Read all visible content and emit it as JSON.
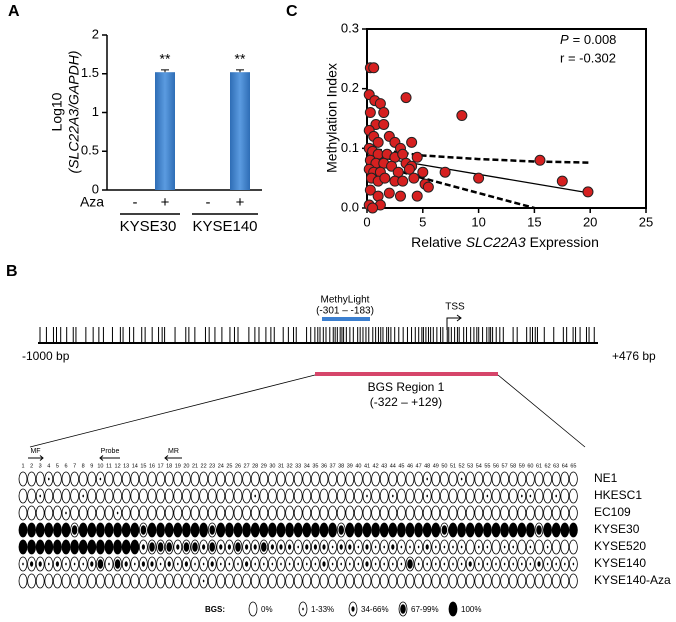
{
  "chart_data": [
    {
      "panel": "A",
      "type": "bar",
      "categories": [
        "-",
        "+",
        "-",
        "+"
      ],
      "row_label": "Aza",
      "groups": [
        "KYSE30",
        "KYSE140"
      ],
      "values": [
        0,
        1.52,
        0,
        1.52
      ],
      "errors": [
        0,
        0.03,
        0,
        0.03
      ],
      "annotations": [
        null,
        "**",
        null,
        "**"
      ],
      "ylabel": "Log10",
      "ylabel_2": "(SLC22A3/GAPDH)",
      "ylim": [
        0,
        2
      ],
      "yticks": [
        0,
        0.5,
        1,
        1.5,
        2
      ],
      "color": "#2e6db5"
    },
    {
      "panel": "C",
      "type": "scatter",
      "xlabel": [
        "Relative",
        "SLC22A3",
        "Expression"
      ],
      "ylabel": "Methylation Index",
      "stat_symbol": "P",
      "stat_text": "= 0.008",
      "stat_r": "r = -0.302",
      "color": "#d62020",
      "x": [
        0.3,
        0.6,
        0.2,
        0.7,
        1.2,
        1.5,
        3.5,
        0.3,
        0.8,
        1.5,
        2.0,
        0.2,
        0.6,
        1.0,
        2.5,
        3.0,
        4.0,
        8.5,
        0.2,
        0.5,
        1.0,
        1.8,
        2.5,
        3.2,
        4.5,
        0.3,
        0.8,
        1.5,
        2.2,
        3.5,
        4.0,
        0.2,
        0.6,
        1.2,
        2.8,
        3.8,
        5.0,
        0.4,
        1.0,
        1.6,
        2.5,
        3.2,
        4.2,
        5.2,
        7.0,
        10,
        15.5,
        17.5,
        19.8,
        0.3,
        1.0,
        2.0,
        3.0,
        4.5,
        0.2,
        1.2,
        0.5,
        5.5
      ],
      "values": [
        0.235,
        0.235,
        0.19,
        0.18,
        0.175,
        0.16,
        0.185,
        0.16,
        0.14,
        0.14,
        0.12,
        0.13,
        0.12,
        0.11,
        0.11,
        0.1,
        0.11,
        0.155,
        0.1,
        0.095,
        0.09,
        0.09,
        0.085,
        0.09,
        0.085,
        0.08,
        0.075,
        0.075,
        0.07,
        0.075,
        0.07,
        0.065,
        0.06,
        0.06,
        0.06,
        0.065,
        0.06,
        0.05,
        0.045,
        0.05,
        0.045,
        0.045,
        0.05,
        0.04,
        0.06,
        0.05,
        0.08,
        0.045,
        0.027,
        0.03,
        0.02,
        0.025,
        0.02,
        0.02,
        0.005,
        0.005,
        0.0,
        0.035
      ],
      "lines": [
        {
          "style": "solid",
          "x": [
            0,
            20
          ],
          "y": [
            0.088,
            0.025
          ]
        },
        {
          "style": "dashed",
          "x": [
            0,
            5,
            10,
            15,
            20
          ],
          "y": [
            0.1,
            0.088,
            0.082,
            0.078,
            0.076
          ]
        },
        {
          "style": "dashed",
          "x": [
            0,
            5,
            10,
            15
          ],
          "y": [
            0.078,
            0.05,
            0.025,
            0.0
          ]
        }
      ],
      "xlim": [
        0,
        25
      ],
      "xticks": [
        0,
        5,
        10,
        15,
        20,
        25
      ],
      "ylim": [
        0,
        0.3
      ],
      "yticks": [
        {
          "value": 0,
          "label": "0.0"
        },
        0.1,
        0.2,
        0.3
      ]
    }
  ],
  "figure_b": {
    "panel": "B",
    "start": "-1000 bp",
    "end": "+476 bp",
    "assay": "MethyLight",
    "assay_range": "(-301 – -183)",
    "tss": "TSS",
    "region": "BGS Region 1",
    "region_range": "(-322 – +129)",
    "primers": [
      "MF",
      "Probe",
      "MR"
    ],
    "positions": [
      1,
      2,
      3,
      4,
      5,
      6,
      7,
      8,
      9,
      10,
      11,
      12,
      13,
      14,
      15,
      16,
      17,
      18,
      19,
      20,
      21,
      22,
      23,
      24,
      25,
      26,
      27,
      28,
      29,
      30,
      31,
      32,
      33,
      34,
      35,
      36,
      37,
      38,
      39,
      40,
      41,
      42,
      43,
      44,
      45,
      46,
      47,
      48,
      49,
      50,
      51,
      52,
      53,
      54,
      55,
      56,
      57,
      58,
      59,
      60,
      61,
      62,
      63,
      64,
      65
    ],
    "rows": [
      {
        "name": "NE1",
        "states": [
          0,
          0,
          0,
          1,
          0,
          0,
          0,
          0,
          0,
          1,
          0,
          0,
          0,
          0,
          0,
          0,
          0,
          0,
          0,
          0,
          0,
          0,
          0,
          0,
          0,
          0,
          0,
          0,
          0,
          0,
          0,
          0,
          0,
          0,
          0,
          0,
          0,
          0,
          0,
          0,
          0,
          0,
          0,
          0,
          0,
          0,
          0,
          1,
          0,
          0,
          0,
          1,
          0,
          0,
          0,
          0,
          0,
          0,
          0,
          0,
          0,
          0,
          0,
          0,
          0
        ]
      },
      {
        "name": "HKESC1",
        "states": [
          0,
          0,
          1,
          0,
          0,
          0,
          0,
          1,
          0,
          0,
          0,
          0,
          0,
          0,
          0,
          0,
          0,
          0,
          0,
          0,
          0,
          0,
          0,
          0,
          0,
          0,
          0,
          1,
          0,
          0,
          0,
          0,
          0,
          0,
          0,
          0,
          0,
          0,
          0,
          0,
          1,
          0,
          0,
          1,
          0,
          0,
          0,
          1,
          0,
          0,
          0,
          0,
          0,
          0,
          1,
          0,
          0,
          0,
          1,
          1,
          0,
          0,
          1,
          0,
          0
        ]
      },
      {
        "name": "EC109",
        "states": [
          0,
          0,
          0,
          0,
          0,
          1,
          0,
          0,
          0,
          0,
          0,
          1,
          0,
          0,
          0,
          0,
          0,
          0,
          0,
          0,
          0,
          0,
          0,
          0,
          0,
          0,
          0,
          0,
          0,
          0,
          0,
          0,
          0,
          0,
          0,
          0,
          0,
          0,
          0,
          0,
          0,
          0,
          0,
          0,
          0,
          0,
          0,
          0,
          0,
          0,
          0,
          0,
          0,
          0,
          0,
          0,
          0,
          0,
          0,
          0,
          0,
          0,
          0,
          0,
          0
        ]
      },
      {
        "name": "KYSE30",
        "states": [
          4,
          4,
          4,
          4,
          4,
          4,
          3,
          4,
          4,
          4,
          4,
          4,
          4,
          4,
          3,
          4,
          4,
          4,
          4,
          4,
          4,
          4,
          3,
          4,
          4,
          4,
          4,
          4,
          4,
          4,
          4,
          4,
          4,
          4,
          4,
          4,
          4,
          3,
          4,
          4,
          4,
          4,
          4,
          4,
          4,
          4,
          4,
          4,
          4,
          3,
          4,
          4,
          4,
          4,
          4,
          4,
          4,
          4,
          4,
          4,
          3,
          4,
          4,
          4,
          4
        ]
      },
      {
        "name": "KYSE520",
        "states": [
          4,
          4,
          4,
          4,
          4,
          4,
          4,
          4,
          4,
          4,
          4,
          4,
          4,
          4,
          2,
          3,
          3,
          3,
          2,
          3,
          3,
          2,
          3,
          2,
          2,
          3,
          2,
          2,
          3,
          2,
          2,
          2,
          1,
          2,
          2,
          2,
          1,
          2,
          2,
          1,
          2,
          1,
          1,
          2,
          1,
          1,
          1,
          2,
          1,
          1,
          1,
          1,
          0,
          1,
          1,
          0,
          1,
          1,
          0,
          1,
          0,
          1,
          0,
          0,
          0
        ]
      },
      {
        "name": "KYSE140",
        "states": [
          1,
          2,
          2,
          1,
          2,
          1,
          1,
          1,
          2,
          3,
          1,
          3,
          2,
          1,
          2,
          2,
          1,
          2,
          1,
          2,
          1,
          1,
          2,
          1,
          1,
          1,
          2,
          1,
          1,
          1,
          1,
          1,
          1,
          1,
          1,
          2,
          1,
          1,
          1,
          1,
          2,
          1,
          1,
          1,
          1,
          3,
          1,
          1,
          1,
          1,
          1,
          1,
          2,
          1,
          1,
          1,
          1,
          1,
          1,
          1,
          2,
          1,
          1,
          1,
          1
        ]
      },
      {
        "name": "KYSE140-Aza",
        "states": [
          0,
          0,
          0,
          0,
          0,
          0,
          0,
          0,
          0,
          0,
          0,
          0,
          0,
          0,
          0,
          0,
          0,
          0,
          0,
          0,
          0,
          1,
          0,
          0,
          0,
          0,
          0,
          0,
          0,
          0,
          0,
          0,
          0,
          0,
          0,
          0,
          0,
          0,
          0,
          0,
          0,
          0,
          0,
          0,
          0,
          0,
          0,
          0,
          0,
          0,
          0,
          0,
          0,
          0,
          0,
          0,
          0,
          0,
          0,
          0,
          0,
          0,
          0,
          0,
          0
        ]
      }
    ],
    "legend_label": "BGS:",
    "legend": [
      "0%",
      "1-33%",
      "34-66%",
      "67-99%",
      "100%"
    ]
  }
}
